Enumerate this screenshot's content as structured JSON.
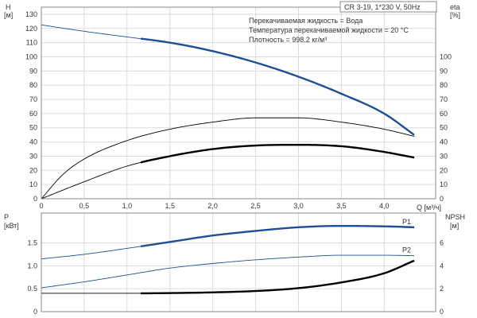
{
  "chart_data": [
    {
      "type": "line",
      "panel": "top",
      "title_box": "CR 3-19, 1*230 V, 50Hz",
      "info_lines": [
        "Перекачиваемая жидкость = Вода",
        "Температура перекачиваемой жидкости = 20 °C",
        "Плотность = 998.2 кг/м³"
      ],
      "x_axis": {
        "label": "Q [м³/ч]",
        "range": [
          0,
          4.6
        ],
        "ticks": [
          "0",
          "0,5",
          "1,0",
          "1,5",
          "2,0",
          "2,5",
          "3,0",
          "3,5",
          "4,0"
        ],
        "tick_values": [
          0,
          0.5,
          1.0,
          1.5,
          2.0,
          2.5,
          3.0,
          3.5,
          4.0
        ]
      },
      "y_left": {
        "label_top": "H",
        "label_unit": "[м]",
        "range": [
          0,
          135
        ],
        "ticks": [
          "0",
          "10",
          "20",
          "30",
          "40",
          "50",
          "60",
          "70",
          "80",
          "90",
          "100",
          "110",
          "120",
          "130"
        ],
        "tick_values": [
          0,
          10,
          20,
          30,
          40,
          50,
          60,
          70,
          80,
          90,
          100,
          110,
          120,
          130
        ]
      },
      "y_right": {
        "label_top": "eta",
        "label_unit": "[%]",
        "range": [
          0,
          135
        ],
        "ticks": [
          "0",
          "10",
          "20",
          "30",
          "40",
          "50",
          "60",
          "70",
          "80",
          "90",
          "100"
        ],
        "tick_values": [
          0,
          10,
          20,
          30,
          40,
          50,
          60,
          70,
          80,
          90,
          100
        ]
      },
      "grid": true,
      "series": [
        {
          "color": "#1e4f94",
          "axis": "left",
          "curve": "H",
          "x": [
            0,
            0.5,
            1.0,
            1.5,
            2.0,
            2.5,
            3.0,
            3.5,
            4.0,
            4.35
          ],
          "y": [
            122.5,
            118,
            114,
            110,
            104,
            96,
            86,
            74,
            60,
            45
          ],
          "bold_range": [
            1.15,
            4.35
          ]
        },
        {
          "color": "#000000",
          "axis": "right",
          "curve": "eta_outer",
          "x": [
            0,
            0.25,
            0.5,
            1.0,
            1.5,
            2.0,
            2.5,
            3.0,
            3.5,
            4.0,
            4.35
          ],
          "y": [
            0,
            17,
            28,
            41,
            49,
            54,
            57,
            57,
            54,
            49,
            44
          ],
          "bold_range": null
        },
        {
          "color": "#000000",
          "axis": "right",
          "curve": "eta_inner",
          "x": [
            0,
            0.5,
            1.0,
            1.5,
            2.0,
            2.5,
            3.0,
            3.5,
            4.0,
            4.35
          ],
          "y": [
            0,
            12,
            23,
            30,
            35,
            37.5,
            38,
            37,
            33,
            29
          ],
          "bold_range": [
            1.15,
            4.35
          ]
        }
      ]
    },
    {
      "type": "line",
      "panel": "bottom",
      "x_axis": {
        "range": [
          0,
          4.6
        ],
        "tick_values": [
          0,
          0.5,
          1.0,
          1.5,
          2.0,
          2.5,
          3.0,
          3.5,
          4.0
        ]
      },
      "y_left": {
        "label_top": "P",
        "label_unit": "[кВт]",
        "range": [
          0,
          2.15
        ],
        "ticks": [
          "0",
          "0.5",
          "1.0",
          "1.5"
        ],
        "tick_values": [
          0,
          0.5,
          1.0,
          1.5
        ]
      },
      "y_right": {
        "label_top": "NPSH",
        "label_unit": "[м]",
        "range": [
          0,
          8.6
        ],
        "ticks": [
          "0",
          "2",
          "4",
          "6"
        ],
        "tick_values": [
          0,
          2,
          4,
          6
        ]
      },
      "grid": true,
      "series": [
        {
          "name": "P1",
          "color": "#1e4f94",
          "axis": "left",
          "x": [
            0,
            0.5,
            1.0,
            1.5,
            2.0,
            2.5,
            3.0,
            3.5,
            4.0,
            4.35
          ],
          "y": [
            1.15,
            1.25,
            1.38,
            1.52,
            1.66,
            1.76,
            1.84,
            1.87,
            1.86,
            1.84
          ],
          "bold_range": [
            1.15,
            4.35
          ]
        },
        {
          "name": "P2",
          "color": "#1e4f94",
          "axis": "left",
          "x": [
            0,
            0.5,
            1.0,
            1.5,
            2.0,
            2.5,
            3.0,
            3.5,
            4.0,
            4.35
          ],
          "y": [
            0.52,
            0.65,
            0.8,
            0.95,
            1.05,
            1.13,
            1.19,
            1.23,
            1.23,
            1.22
          ],
          "bold_range": null
        },
        {
          "color": "#000000",
          "axis": "right",
          "curve": "NPSH",
          "x": [
            0,
            0.5,
            1.0,
            1.15,
            1.5,
            2.0,
            2.5,
            3.0,
            3.5,
            4.0,
            4.35
          ],
          "y": [
            1.6,
            1.6,
            1.6,
            1.6,
            1.62,
            1.68,
            1.8,
            2.05,
            2.55,
            3.35,
            4.45
          ],
          "bold_range": [
            1.15,
            4.35
          ]
        }
      ]
    }
  ]
}
